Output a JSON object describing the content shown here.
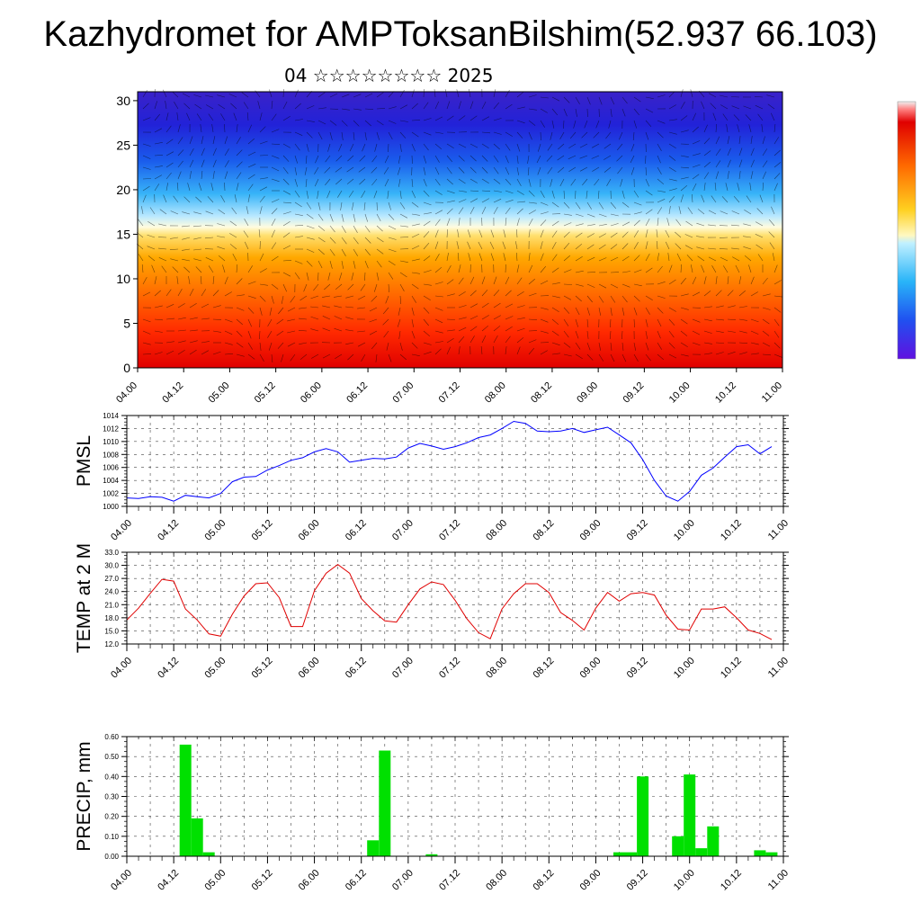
{
  "page": {
    "title": "Kazhydromet for AMPToksanBilshim(52.937 66.103)",
    "subtitle": "04 ☆☆☆☆☆☆☆☆ 2025"
  },
  "chart_data": [
    {
      "type": "heatmap",
      "title": "",
      "xlabel": "",
      "ylabel": "",
      "x_tick_labels": [
        "04.00",
        "04.12",
        "05.00",
        "05.12",
        "06.00",
        "06.12",
        "07.00",
        "07.12",
        "08.00",
        "08.12",
        "09.00",
        "09.12",
        "10.00",
        "10.12",
        "11.00"
      ],
      "y_ticks": [
        0,
        5,
        10,
        15,
        20,
        25,
        30
      ],
      "ylim": [
        0,
        31
      ],
      "colorbar": "rainbow, purple (top) to red (bottom)",
      "overlay": "wind vectors"
    },
    {
      "type": "line",
      "ylabel": "PMSL",
      "ylim": [
        1000,
        1014
      ],
      "y_ticks": [
        "1000",
        "1002",
        "1004",
        "1006",
        "1008",
        "1010",
        "1012",
        "1014"
      ],
      "x_tick_labels": [
        "04.00",
        "04.12",
        "05.00",
        "05.12",
        "06.00",
        "06.12",
        "07.00",
        "07.12",
        "08.00",
        "08.12",
        "09.00",
        "09.12",
        "10.00",
        "10.12",
        "11.00"
      ],
      "color": "#0000ff",
      "x": [
        0,
        3,
        6,
        9,
        12,
        15,
        18,
        21,
        24,
        27,
        30,
        33,
        36,
        39,
        42,
        45,
        48,
        51,
        54,
        57,
        60,
        63,
        66,
        69,
        72,
        75,
        78,
        81,
        84,
        87,
        90,
        93,
        96,
        99,
        102,
        105,
        108,
        111,
        114,
        117,
        120,
        123,
        126,
        129,
        132,
        135,
        138,
        141,
        144,
        147,
        150,
        153,
        156,
        159,
        162,
        165
      ],
      "values": [
        1001.3,
        1001.2,
        1001.5,
        1001.4,
        1000.8,
        1001.7,
        1001.5,
        1001.3,
        1002.0,
        1003.8,
        1004.5,
        1004.6,
        1005.6,
        1006.3,
        1007.1,
        1007.5,
        1008.4,
        1008.9,
        1008.4,
        1006.8,
        1007.1,
        1007.4,
        1007.3,
        1007.6,
        1009.0,
        1009.7,
        1009.3,
        1008.8,
        1009.2,
        1009.8,
        1010.6,
        1011.0,
        1012.0,
        1013.1,
        1012.8,
        1011.6,
        1011.5,
        1011.6,
        1012.0,
        1011.4,
        1011.8,
        1012.2,
        1011.0,
        1009.8,
        1007.2,
        1004.0,
        1001.6,
        1000.8,
        1002.3,
        1004.8,
        1005.9,
        1007.6,
        1009.2,
        1009.5,
        1008.1,
        1009.2
      ]
    },
    {
      "type": "line",
      "ylabel": "TEMP at 2 M",
      "ylim": [
        12,
        33
      ],
      "y_ticks": [
        "12.0",
        "15.0",
        "18.0",
        "21.0",
        "24.0",
        "27.0",
        "30.0",
        "33.0"
      ],
      "x_tick_labels": [
        "04.00",
        "04.12",
        "05.00",
        "05.12",
        "06.00",
        "06.12",
        "07.00",
        "07.12",
        "08.00",
        "08.12",
        "09.00",
        "09.12",
        "10.00",
        "10.12",
        "11.00"
      ],
      "color": "#e00000",
      "x": [
        0,
        3,
        6,
        9,
        12,
        15,
        18,
        21,
        24,
        27,
        30,
        33,
        36,
        39,
        42,
        45,
        48,
        51,
        54,
        57,
        60,
        63,
        66,
        69,
        72,
        75,
        78,
        81,
        84,
        87,
        90,
        93,
        96,
        99,
        102,
        105,
        108,
        111,
        114,
        117,
        120,
        123,
        126,
        129,
        132,
        135,
        138,
        141,
        144,
        147,
        150,
        153,
        156,
        159,
        162,
        165
      ],
      "values": [
        17.5,
        20.2,
        23.6,
        26.8,
        26.4,
        20.0,
        17.5,
        14.3,
        13.8,
        18.8,
        23.0,
        25.8,
        26.0,
        22.6,
        16.0,
        16.0,
        24.2,
        28.2,
        30.2,
        28.2,
        22.4,
        19.6,
        17.3,
        17.0,
        21.0,
        24.6,
        26.2,
        25.6,
        22.0,
        17.8,
        14.6,
        13.2,
        20.0,
        23.5,
        25.8,
        25.8,
        23.8,
        19.2,
        17.4,
        15.2,
        20.2,
        23.8,
        21.8,
        23.5,
        23.8,
        23.2,
        18.6,
        15.4,
        15.2,
        20.0,
        20.0,
        20.5,
        18.0,
        15.2,
        14.4,
        13.0
      ]
    },
    {
      "type": "bar",
      "ylabel": "PRECIP, mm",
      "ylim": [
        0,
        0.6
      ],
      "y_ticks": [
        "0.00",
        "0.10",
        "0.20",
        "0.30",
        "0.40",
        "0.50",
        "0.60"
      ],
      "x_tick_labels": [
        "04.00",
        "04.12",
        "05.00",
        "05.12",
        "06.00",
        "06.12",
        "07.00",
        "07.12",
        "08.00",
        "08.12",
        "09.00",
        "09.12",
        "10.00",
        "10.12",
        "11.00"
      ],
      "color": "#00e000",
      "x": [
        0,
        3,
        6,
        9,
        12,
        15,
        18,
        21,
        24,
        27,
        30,
        33,
        36,
        39,
        42,
        45,
        48,
        51,
        54,
        57,
        60,
        63,
        66,
        69,
        72,
        75,
        78,
        81,
        84,
        87,
        90,
        93,
        96,
        99,
        102,
        105,
        108,
        111,
        114,
        117,
        120,
        123,
        126,
        129,
        132,
        135,
        138,
        141,
        144,
        147,
        150,
        153,
        156,
        159,
        162,
        165
      ],
      "values": [
        0,
        0,
        0,
        0,
        0.56,
        0.19,
        0.02,
        0,
        0,
        0,
        0,
        0,
        0,
        0,
        0,
        0,
        0,
        0,
        0,
        0,
        0.08,
        0.53,
        0,
        0,
        0,
        0.01,
        0,
        0,
        0,
        0,
        0,
        0,
        0,
        0,
        0,
        0,
        0,
        0,
        0,
        0,
        0,
        0.02,
        0.02,
        0.4,
        0,
        0,
        0.1,
        0.41,
        0.04,
        0.15,
        0,
        0,
        0,
        0.03,
        0.02,
        0
      ]
    }
  ]
}
